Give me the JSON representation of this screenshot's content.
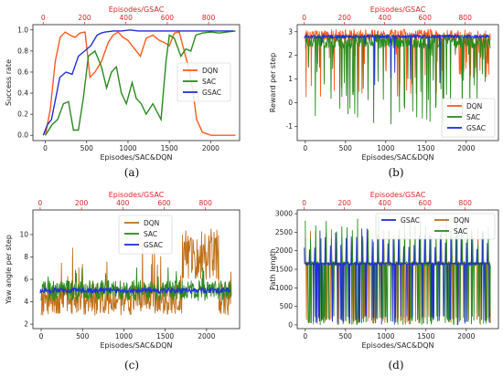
{
  "chart_data": [
    {
      "type": "line",
      "caption": "(a)",
      "xlabel": "Episodes/SAC&DQN",
      "top_xlabel": "Episodes/GSAC",
      "ylabel": "Success rate",
      "xlim": [
        -150,
        2350
      ],
      "ylim": [
        -0.05,
        1.05
      ],
      "xticks": [
        0,
        500,
        1000,
        1500,
        2000
      ],
      "top_xlim": [
        -50,
        950
      ],
      "top_xticks": [
        0,
        200,
        400,
        600,
        800
      ],
      "yticks": [
        "0.0",
        "0.2",
        "0.4",
        "0.6",
        "0.8",
        "1.0"
      ],
      "ytick_values": [
        0,
        0.2,
        0.4,
        0.6,
        0.8,
        1.0
      ],
      "legend": [
        {
          "name": "DQN",
          "color": "#ff5a1f"
        },
        {
          "name": "SAC",
          "color": "#2a8a1e"
        },
        {
          "name": "GSAC",
          "color": "#1f2fd6"
        }
      ],
      "legend_position": "center-right",
      "series": [
        {
          "name": "DQN",
          "color": "#ff5a1f",
          "axis": "bottom",
          "x": [
            0,
            60,
            120,
            180,
            240,
            300,
            360,
            420,
            480,
            540,
            600,
            680,
            760,
            820,
            880,
            940,
            1000,
            1080,
            1150,
            1220,
            1300,
            1380,
            1440,
            1500,
            1560,
            1620,
            1680,
            1730,
            1780,
            1830,
            1900,
            2000,
            2100,
            2200,
            2300
          ],
          "y": [
            0.0,
            0.25,
            0.7,
            0.93,
            0.98,
            0.95,
            0.93,
            0.97,
            0.98,
            0.55,
            0.6,
            0.7,
            0.88,
            0.95,
            0.98,
            0.93,
            0.9,
            0.82,
            0.75,
            0.92,
            0.95,
            0.9,
            0.88,
            0.85,
            0.97,
            0.98,
            0.8,
            0.65,
            0.45,
            0.15,
            0.03,
            0.0,
            0.0,
            0.0,
            0.0
          ]
        },
        {
          "name": "SAC",
          "color": "#2a8a1e",
          "axis": "bottom",
          "x": [
            0,
            80,
            150,
            220,
            280,
            340,
            400,
            460,
            520,
            600,
            680,
            740,
            800,
            860,
            920,
            980,
            1050,
            1100,
            1160,
            1220,
            1300,
            1400,
            1460,
            1500,
            1560,
            1640,
            1700,
            1760,
            1820,
            1900,
            2000,
            2100,
            2200,
            2300
          ],
          "y": [
            0.0,
            0.1,
            0.15,
            0.3,
            0.32,
            0.05,
            0.05,
            0.35,
            0.75,
            0.8,
            0.65,
            0.45,
            0.6,
            0.65,
            0.4,
            0.3,
            0.5,
            0.35,
            0.3,
            0.2,
            0.3,
            0.15,
            0.7,
            0.95,
            0.92,
            0.75,
            0.82,
            0.8,
            0.95,
            0.97,
            0.98,
            0.97,
            0.98,
            0.99
          ]
        },
        {
          "name": "GSAC",
          "color": "#1f2fd6",
          "axis": "top",
          "x": [
            0,
            20,
            40,
            60,
            80,
            110,
            140,
            170,
            200,
            230,
            260,
            280,
            300,
            340,
            380,
            420,
            460,
            500,
            560,
            620,
            680,
            740,
            800,
            860,
            920
          ],
          "y": [
            0.0,
            0.1,
            0.15,
            0.35,
            0.55,
            0.6,
            0.58,
            0.75,
            0.8,
            0.85,
            0.95,
            0.97,
            0.98,
            0.99,
            0.99,
            1.0,
            0.99,
            0.99,
            0.99,
            0.99,
            0.99,
            0.99,
            0.99,
            0.99,
            0.99
          ]
        }
      ]
    },
    {
      "type": "line",
      "caption": "(b)",
      "xlabel": "Episodes/SAC&DQN",
      "top_xlabel": "Episodes/GSAC",
      "ylabel": "Reward per step",
      "xlim": [
        -100,
        2400
      ],
      "ylim": [
        -1.6,
        3.3
      ],
      "xticks": [
        0,
        500,
        1000,
        1500,
        2000
      ],
      "top_xlim": [
        -35,
        965
      ],
      "top_xticks": [
        0,
        200,
        400,
        600,
        800
      ],
      "yticks": [
        "-1",
        "0",
        "1",
        "2",
        "3"
      ],
      "ytick_values": [
        -1,
        0,
        1,
        2,
        3
      ],
      "legend": [
        {
          "name": "DQN",
          "color": "#ff5a1f"
        },
        {
          "name": "SAC",
          "color": "#2a8a1e"
        },
        {
          "name": "GSAC",
          "color": "#1f2fd6"
        }
      ],
      "legend_position": "lower-right",
      "noisy_series": [
        {
          "name": "DQN",
          "color": "#ff5a1f",
          "base": 2.85,
          "spread": 0.25,
          "spikes": 0.08,
          "spike_min": 0.2,
          "late_drop": true
        },
        {
          "name": "SAC",
          "color": "#2a8a1e",
          "base": 2.6,
          "spread": 0.3,
          "spikes": 0.12,
          "spike_min": -0.9,
          "late_drop": false
        },
        {
          "name": "GSAC",
          "color": "#1f2fd6",
          "base": 2.8,
          "spread": 0.08,
          "spikes": 0.02,
          "spike_min": 0.6,
          "late_drop": false
        }
      ]
    },
    {
      "type": "line",
      "caption": "(c)",
      "xlabel": "Episodes/SAC&DQN",
      "top_xlabel": "Episodes/GSAC",
      "ylabel": "Yaw angle per step",
      "xlim": [
        -100,
        2400
      ],
      "ylim": [
        1.6,
        12.2
      ],
      "xticks": [
        0,
        500,
        1000,
        1500,
        2000
      ],
      "top_xlim": [
        -35,
        965
      ],
      "top_xticks": [
        0,
        200,
        400,
        600,
        800
      ],
      "yticks": [
        "2",
        "4",
        "6",
        "8",
        "10"
      ],
      "ytick_values": [
        2,
        4,
        6,
        8,
        10
      ],
      "legend": [
        {
          "name": "DQN",
          "color": "#c0701a"
        },
        {
          "name": "SAC",
          "color": "#2a8a1e"
        },
        {
          "name": "GSAC",
          "color": "#1f2fd6"
        }
      ],
      "legend_position": "upper-center",
      "noisy_series": [
        {
          "name": "DQN",
          "color": "#c0701a",
          "base": 4.2,
          "spread": 1.4,
          "spikes": 0.06,
          "spike_min": 9.5,
          "late_drop": false
        },
        {
          "name": "SAC",
          "color": "#2a8a1e",
          "base": 5.0,
          "spread": 0.9,
          "spikes": 0.03,
          "spike_min": 7.5,
          "late_drop": false
        },
        {
          "name": "GSAC",
          "color": "#1f2fd6",
          "base": 5.0,
          "spread": 0.25,
          "spikes": 0.0,
          "spike_min": 5.0,
          "late_drop": false
        }
      ]
    },
    {
      "type": "line",
      "caption": "(d)",
      "xlabel": "Episodes/SAC&DQN",
      "top_xlabel": "Episodes/GSAC",
      "ylabel": "Path length",
      "xlim": [
        -100,
        2400
      ],
      "ylim": [
        -100,
        3100
      ],
      "xticks": [
        0,
        500,
        1000,
        1500,
        2000
      ],
      "top_xlim": [
        -35,
        965
      ],
      "top_xticks": [
        0,
        200,
        400,
        600,
        800
      ],
      "yticks": [
        "0",
        "500",
        "1000",
        "1500",
        "2000",
        "2500",
        "3000"
      ],
      "ytick_values": [
        0,
        500,
        1000,
        1500,
        2000,
        2500,
        3000
      ],
      "legend": [
        {
          "name": "GSAC",
          "color": "#1f2fd6"
        },
        {
          "name": "DQN",
          "color": "#c0701a"
        },
        {
          "name": "SAC",
          "color": "#2a8a1e"
        }
      ],
      "legend_position": "upper-right",
      "noisy_series": [
        {
          "name": "DQN",
          "color": "#c0701a",
          "base": 1650,
          "spread": 60,
          "spikes": 0.18,
          "spike_min": 0,
          "late_drop": false
        },
        {
          "name": "SAC",
          "color": "#2a8a1e",
          "base": 1650,
          "spread": 60,
          "spikes": 0.22,
          "spike_min": 0,
          "late_drop": false
        },
        {
          "name": "GSAC",
          "color": "#1f2fd6",
          "base": 1650,
          "spread": 30,
          "spikes": 0.15,
          "spike_min": 0,
          "late_drop": false
        }
      ]
    }
  ]
}
